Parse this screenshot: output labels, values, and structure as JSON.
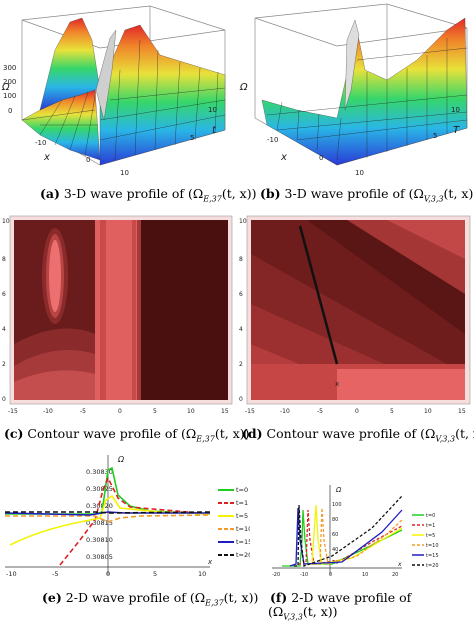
{
  "panels": {
    "a": {
      "caption_letter": "(a)",
      "caption_text": " 3-D wave profile of (Ω",
      "caption_sub": "E,37",
      "caption_tail": "(t, x))",
      "axis_z": "Ω",
      "axis_x": "x",
      "axis_t": "t",
      "z_ticks": [
        "300",
        "200",
        "100",
        "0"
      ],
      "x_ticks": [
        "-10",
        "0",
        "10"
      ],
      "t_ticks": [
        "5",
        "10"
      ]
    },
    "b": {
      "caption_letter": "(b)",
      "caption_text": " 3-D wave profile of (Ω",
      "caption_sub": "V,3,3",
      "caption_tail": "(t, x))",
      "axis_z": "Ω",
      "axis_x": "x",
      "axis_t": "T",
      "x_ticks": [
        "-10",
        "0",
        "10"
      ],
      "t_ticks": [
        "5",
        "10"
      ]
    },
    "c": {
      "caption_letter": "(c)",
      "caption_text": " Contour wave profile of (Ω",
      "caption_sub": "E,37",
      "caption_tail": "(t, x))",
      "x_ticks": [
        "-15",
        "-10",
        "-5",
        "0",
        "5",
        "10",
        "15"
      ],
      "y_ticks": [
        "0",
        "2",
        "4",
        "6",
        "8",
        "10"
      ]
    },
    "d": {
      "caption_letter": "(d)",
      "caption_text": " Contour wave profile of (Ω",
      "caption_sub": "V,3,3",
      "caption_tail": "(t, x))",
      "x_ticks": [
        "-15",
        "-10",
        "-5",
        "0",
        "5",
        "10",
        "15"
      ],
      "y_ticks": [
        "0",
        "2",
        "4",
        "6",
        "8",
        "10"
      ]
    },
    "e": {
      "caption_letter": "(e)",
      "caption_text": " 2-D wave profile of (Ω",
      "caption_sub": "E,37",
      "caption_tail": "(t, x))",
      "axis_y": "Ω",
      "axis_x": "x",
      "y_ticks": [
        "0.30830",
        "0.30825",
        "0.30820",
        "0.30815",
        "0.30810",
        "0.30805"
      ],
      "x_ticks": [
        "-10",
        "-5",
        "0",
        "5",
        "10"
      ],
      "legend": [
        "t=0",
        "t=1",
        "t=5",
        "t=10",
        "t=15",
        "t=20"
      ]
    },
    "f": {
      "caption_letter": "(f)",
      "caption_line1": " 2-D wave profile of",
      "caption_text": "(Ω",
      "caption_sub": "V,3,3",
      "caption_tail": "(t, x))",
      "axis_y": "Ω",
      "axis_x": "x",
      "y_ticks": [
        "100",
        "80",
        "60",
        "40",
        "20"
      ],
      "x_ticks": [
        "-20",
        "-10",
        "0",
        "10",
        "20"
      ],
      "legend": [
        "t=0",
        "t=1",
        "t=5",
        "t=10",
        "t=15",
        "t=20"
      ]
    }
  },
  "colors": {
    "t0": "#22cc22",
    "t1": "#dd2222",
    "t5": "#f4f400",
    "t10": "#f39b2a",
    "t15": "#1d1dbd",
    "t20": "#111111",
    "contour_dark": "#4a1414",
    "contour_light": "#ec6b6b"
  }
}
